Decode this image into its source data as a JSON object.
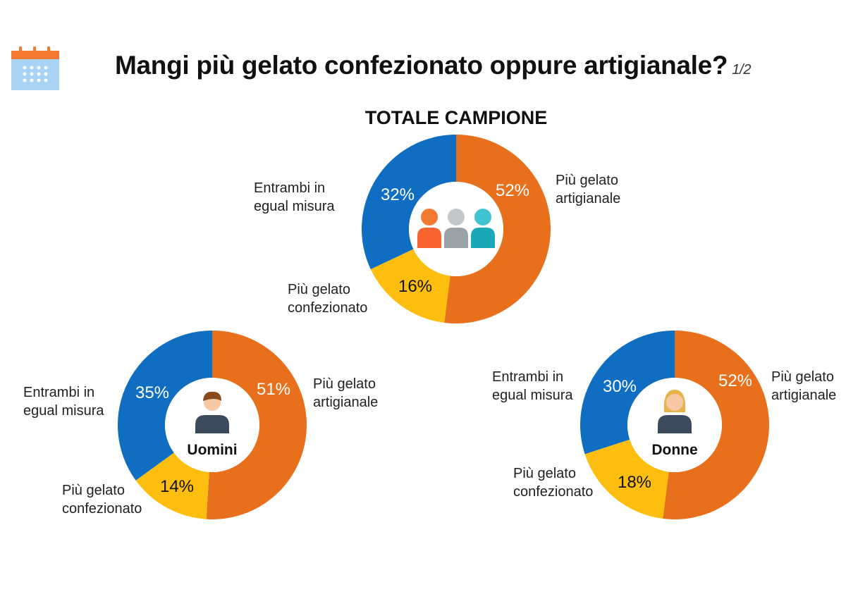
{
  "header": {
    "title": "Mangi più gelato confezionato oppure artigianale?",
    "page": "1/2"
  },
  "icons": {
    "calendar": "calendar-icon",
    "group": "people-group-icon",
    "man": "man-avatar-icon",
    "woman": "woman-avatar-icon"
  },
  "colors": {
    "artigianale": "#e8701c",
    "entrambi": "#0f6dc2",
    "confezionato": "#fdbe0f"
  },
  "chart_data": [
    {
      "type": "pie",
      "title": "TOTALE CAMPIONE",
      "center_label": "",
      "slices": [
        {
          "label": "Più gelato artigianale",
          "value": 52,
          "display": "52%"
        },
        {
          "label": "Più gelato confezionato",
          "value": 16,
          "display": "16%"
        },
        {
          "label": "Entrambi in egual misura",
          "value": 32,
          "display": "32%"
        }
      ]
    },
    {
      "type": "pie",
      "title": "",
      "center_label": "Uomini",
      "slices": [
        {
          "label": "Più gelato artigianale",
          "value": 51,
          "display": "51%"
        },
        {
          "label": "Più gelato confezionato",
          "value": 14,
          "display": "14%"
        },
        {
          "label": "Entrambi in egual misura",
          "value": 35,
          "display": "35%"
        }
      ]
    },
    {
      "type": "pie",
      "title": "",
      "center_label": "Donne",
      "slices": [
        {
          "label": "Più gelato artigianale",
          "value": 52,
          "display": "52%"
        },
        {
          "label": "Più gelato confezionato",
          "value": 18,
          "display": "18%"
        },
        {
          "label": "Entrambi in egual misura",
          "value": 30,
          "display": "30%"
        }
      ]
    }
  ]
}
